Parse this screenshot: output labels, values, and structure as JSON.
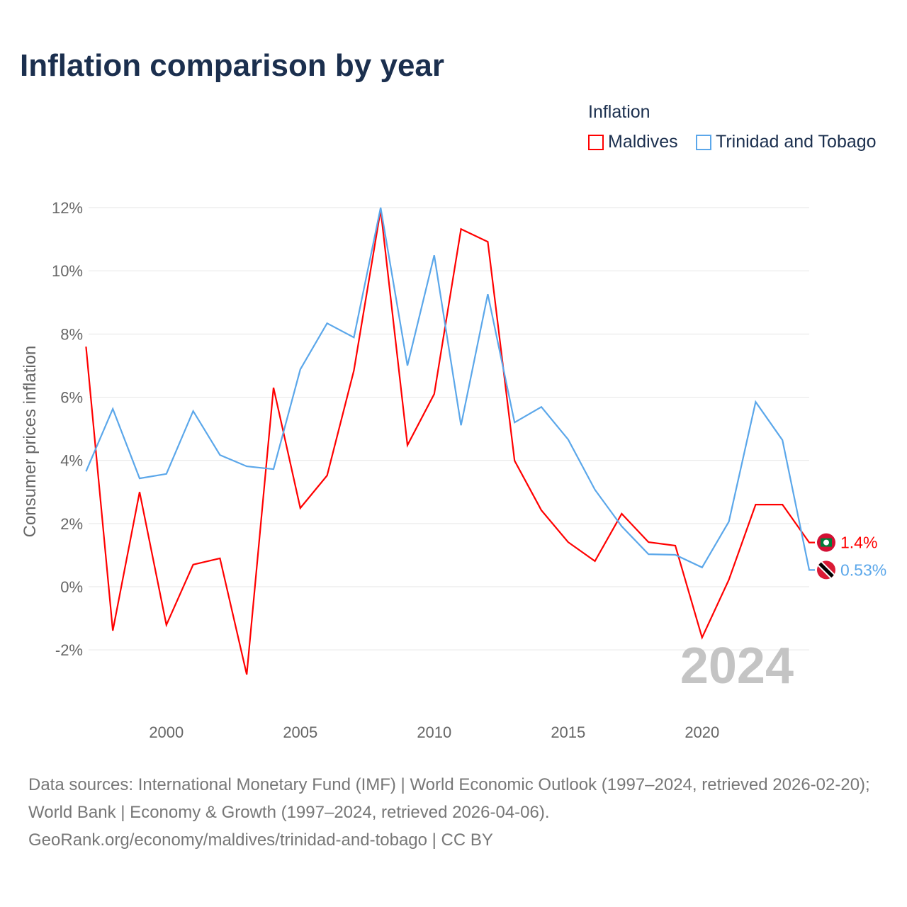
{
  "title": "Inflation comparison by year",
  "legend": {
    "title": "Inflation",
    "items": [
      "Maldives",
      "Trinidad and Tobago"
    ]
  },
  "source": {
    "line1": "Data sources: International Monetary Fund (IMF) | World Economic Outlook (1997–2024, retrieved 2026-02-20); World Bank | Economy & Growth (1997–2024, retrieved 2026-04-06).",
    "line2": "GeoRank.org/economy/maldives/trinidad-and-tobago | CC BY"
  },
  "chart_data": {
    "type": "line",
    "title": "Inflation comparison by year",
    "ylabel": "Consumer prices inflation",
    "xlabel": "",
    "ylim": [
      -3.7,
      12
    ],
    "xlim": [
      1997,
      2024
    ],
    "yticks": [
      -2,
      0,
      2,
      4,
      6,
      8,
      10,
      12
    ],
    "ytick_labels": [
      "-2%",
      "0%",
      "2%",
      "4%",
      "6%",
      "8%",
      "10%",
      "12%"
    ],
    "xticks": [
      2000,
      2005,
      2010,
      2015,
      2020
    ],
    "xtick_labels": [
      "2000",
      "2005",
      "2010",
      "2015",
      "2020"
    ],
    "year_watermark": "2024",
    "grid": true,
    "legend_position": "top-right",
    "x": [
      1997,
      1998,
      1999,
      2000,
      2001,
      2002,
      2003,
      2004,
      2005,
      2006,
      2007,
      2008,
      2009,
      2010,
      2011,
      2012,
      2013,
      2014,
      2015,
      2016,
      2017,
      2018,
      2019,
      2020,
      2021,
      2022,
      2023,
      2024
    ],
    "series": [
      {
        "name": "Maldives",
        "color": "#ff0000",
        "end_label": "1.4%",
        "values": [
          7.6,
          -1.39,
          3.0,
          -1.21,
          0.7,
          0.9,
          -2.78,
          6.3,
          2.49,
          3.52,
          6.84,
          11.93,
          4.48,
          6.1,
          11.32,
          10.92,
          3.99,
          2.42,
          1.41,
          0.81,
          2.31,
          1.41,
          1.3,
          -1.61,
          0.22,
          2.6,
          2.6,
          1.4
        ]
      },
      {
        "name": "Trinidad and Tobago",
        "color": "#5ba7ea",
        "end_label": "0.53%",
        "values": [
          3.65,
          5.63,
          3.43,
          3.57,
          5.56,
          4.17,
          3.81,
          3.72,
          6.88,
          8.34,
          7.89,
          12.0,
          7.0,
          10.49,
          5.11,
          9.26,
          5.2,
          5.69,
          4.66,
          3.07,
          1.91,
          1.03,
          1.01,
          0.61,
          2.06,
          5.85,
          4.64,
          0.53
        ]
      }
    ]
  }
}
